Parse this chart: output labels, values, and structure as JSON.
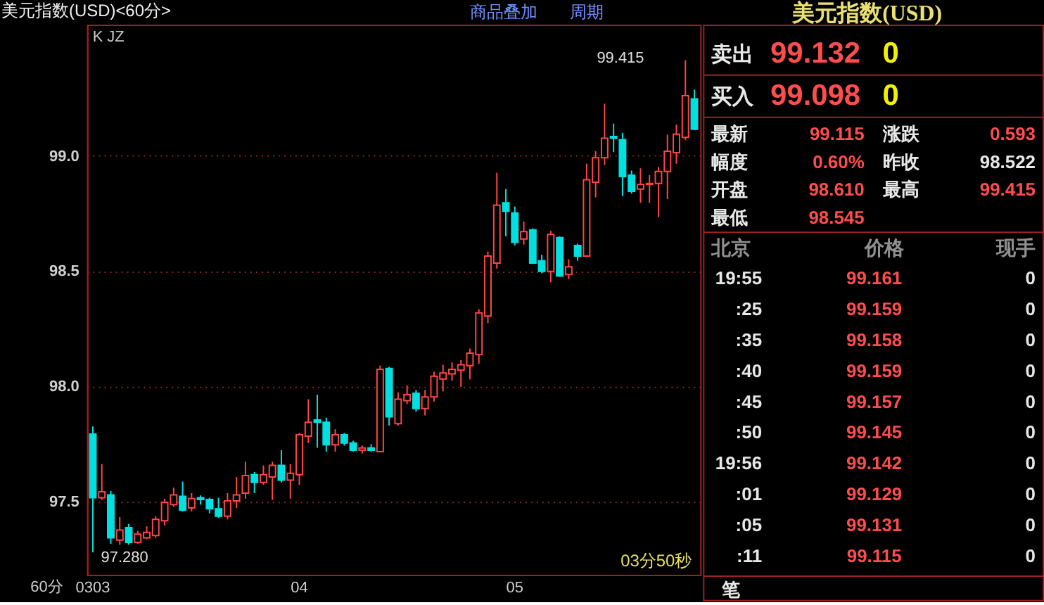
{
  "chart_data": [
    {
      "type": "candlestick",
      "title": "美元指数(USD)<60分>",
      "categories": [
        "0303",
        null,
        null,
        null,
        null,
        null,
        null,
        null,
        null,
        null,
        null,
        null,
        null,
        null,
        null,
        null,
        null,
        null,
        null,
        null,
        null,
        null,
        null,
        "04",
        null,
        null,
        null,
        null,
        null,
        null,
        null,
        null,
        null,
        null,
        null,
        null,
        null,
        null,
        null,
        null,
        null,
        null,
        null,
        null,
        null,
        null,
        null,
        "05",
        null,
        null,
        null,
        null,
        null,
        null,
        null,
        null,
        null,
        null,
        null,
        null,
        null,
        null,
        null,
        null,
        null,
        null,
        null,
        null
      ],
      "ohlc": [
        [
          97.793,
          97.826,
          97.28,
          97.517
        ],
        [
          97.517,
          97.663,
          97.507,
          97.543
        ],
        [
          97.529,
          97.547,
          97.317,
          97.343
        ],
        [
          97.333,
          97.433,
          97.313,
          97.377
        ],
        [
          97.387,
          97.403,
          97.313,
          97.323
        ],
        [
          97.323,
          97.373,
          97.317,
          97.359
        ],
        [
          97.343,
          97.393,
          97.337,
          97.367
        ],
        [
          97.353,
          97.437,
          97.343,
          97.423
        ],
        [
          97.417,
          97.513,
          97.397,
          97.497
        ],
        [
          97.487,
          97.561,
          97.477,
          97.529
        ],
        [
          97.523,
          97.587,
          97.457,
          97.463
        ],
        [
          97.473,
          97.537,
          97.457,
          97.513
        ],
        [
          97.517,
          97.527,
          97.487,
          97.509
        ],
        [
          97.509,
          97.517,
          97.449,
          97.469
        ],
        [
          97.469,
          97.517,
          97.429,
          97.437
        ],
        [
          97.437,
          97.537,
          97.423,
          97.503
        ],
        [
          97.503,
          97.607,
          97.473,
          97.529
        ],
        [
          97.537,
          97.673,
          97.513,
          97.613
        ],
        [
          97.617,
          97.629,
          97.537,
          97.583
        ],
        [
          97.583,
          97.657,
          97.573,
          97.617
        ],
        [
          97.607,
          97.673,
          97.507,
          97.657
        ],
        [
          97.657,
          97.723,
          97.583,
          97.593
        ],
        [
          97.593,
          97.663,
          97.513,
          97.623
        ],
        [
          97.617,
          97.798,
          97.573,
          97.79
        ],
        [
          97.784,
          97.944,
          97.754,
          97.844
        ],
        [
          97.854,
          97.964,
          97.734,
          97.844
        ],
        [
          97.844,
          97.864,
          97.717,
          97.747
        ],
        [
          97.747,
          97.814,
          97.717,
          97.79
        ],
        [
          97.79,
          97.798,
          97.743,
          97.754
        ],
        [
          97.754,
          97.764,
          97.717,
          97.723
        ],
        [
          97.723,
          97.743,
          97.709,
          97.733
        ],
        [
          97.733,
          97.749,
          97.717,
          97.723
        ],
        [
          97.717,
          98.09,
          97.717,
          98.074
        ],
        [
          98.078,
          98.084,
          97.83,
          97.868
        ],
        [
          97.838,
          97.974,
          97.83,
          97.944
        ],
        [
          97.938,
          98.004,
          97.924,
          97.964
        ],
        [
          97.97,
          97.984,
          97.89,
          97.904
        ],
        [
          97.904,
          97.984,
          97.874,
          97.954
        ],
        [
          97.954,
          98.064,
          97.934,
          98.044
        ],
        [
          98.032,
          98.094,
          97.978,
          98.058
        ],
        [
          98.054,
          98.104,
          98.024,
          98.074
        ],
        [
          98.07,
          98.114,
          97.998,
          98.094
        ],
        [
          98.09,
          98.164,
          98.03,
          98.144
        ],
        [
          98.138,
          98.335,
          98.098,
          98.319
        ],
        [
          98.305,
          98.585,
          98.275,
          98.565
        ],
        [
          98.535,
          98.926,
          98.511,
          98.786
        ],
        [
          98.796,
          98.856,
          98.651,
          98.76
        ],
        [
          98.752,
          98.78,
          98.611,
          98.625
        ],
        [
          98.639,
          98.715,
          98.615,
          98.671
        ],
        [
          98.679,
          98.685,
          98.531,
          98.535
        ],
        [
          98.545,
          98.571,
          98.491,
          98.499
        ],
        [
          98.499,
          98.675,
          98.451,
          98.659
        ],
        [
          98.645,
          98.651,
          98.475,
          98.479
        ],
        [
          98.485,
          98.551,
          98.465,
          98.519
        ],
        [
          98.611,
          98.619,
          98.545,
          98.565
        ],
        [
          98.565,
          98.966,
          98.565,
          98.896
        ],
        [
          98.886,
          99.02,
          98.82,
          98.992
        ],
        [
          98.992,
          99.226,
          98.96,
          99.076
        ],
        [
          99.084,
          99.14,
          99.016,
          99.076
        ],
        [
          99.07,
          99.1,
          98.826,
          98.91
        ],
        [
          98.916,
          98.936,
          98.836,
          98.846
        ],
        [
          98.856,
          98.946,
          98.796,
          98.876
        ],
        [
          98.876,
          98.916,
          98.796,
          98.88
        ],
        [
          98.88,
          98.952,
          98.735,
          98.932
        ],
        [
          98.932,
          99.092,
          98.812,
          99.02
        ],
        [
          99.014,
          99.136,
          98.966,
          99.094
        ],
        [
          99.08,
          99.415,
          99.068,
          99.261
        ],
        [
          99.247,
          99.287,
          99.112,
          99.115
        ]
      ],
      "colors": [
        "#00e0e0",
        "#ff4444",
        "#00e0e0",
        "#ff4444",
        "#00e0e0",
        "#ff4444",
        "#ff4444",
        "#ff4444",
        "#ff4444",
        "#ff4444",
        "#00e0e0",
        "#ff4444",
        "#00e0e0",
        "#00e0e0",
        "#00e0e0",
        "#ff4444",
        "#ff4444",
        "#ff4444",
        "#00e0e0",
        "#ff4444",
        "#ff4444",
        "#00e0e0",
        "#ff4444",
        "#ff4444",
        "#ff4444",
        "#00e0e0",
        "#00e0e0",
        "#ff4444",
        "#00e0e0",
        "#00e0e0",
        "#ff4444",
        "#00e0e0",
        "#ff4444",
        "#00e0e0",
        "#ff4444",
        "#ff4444",
        "#00e0e0",
        "#ff4444",
        "#ff4444",
        "#ff4444",
        "#ff4444",
        "#ff4444",
        "#ff4444",
        "#ff4444",
        "#ff4444",
        "#ff4444",
        "#00e0e0",
        "#00e0e0",
        "#ff4444",
        "#00e0e0",
        "#00e0e0",
        "#ff4444",
        "#00e0e0",
        "#ff4444",
        "#00e0e0",
        "#ff4444",
        "#ff4444",
        "#ff4444",
        "#00e0e0",
        "#00e0e0",
        "#00e0e0",
        "#ff4444",
        "#ff4444",
        "#ff4444",
        "#ff4444",
        "#ff4444",
        "#ff4444",
        "#00e0e0"
      ],
      "ylim": [
        97.183,
        99.569
      ],
      "yticks": [
        97.5,
        {
          "value": 98,
          "label": "98.0"
        },
        98.5,
        {
          "value": 99,
          "label": "99.0"
        }
      ],
      "grid": "y",
      "annotations": [
        "K JZ",
        "99.415",
        "97.280",
        "03分50秒",
        "60分",
        "商品叠加",
        "周期"
      ]
    },
    {
      "type": "other",
      "title": "美元指数(USD)",
      "annotations": [
        "卖出",
        "99.132",
        "0",
        "买入",
        "99.098",
        "0",
        "最新",
        "99.115",
        "涨跌",
        "0.593",
        "幅度",
        "0.60%",
        "昨收",
        "98.522",
        "开盘",
        "98.610",
        "最高",
        "99.415",
        "最低",
        "98.545",
        "北京",
        "价格",
        "现手",
        "19:55",
        "99.161",
        "0",
        ":25",
        "99.159",
        "0",
        ":35",
        "99.158",
        "0",
        ":40",
        "99.159",
        "0",
        ":45",
        "99.157",
        "0",
        ":50",
        "99.145",
        "0",
        "19:56",
        "99.142",
        "0",
        ":01",
        "99.129",
        "0",
        ":05",
        "99.131",
        "0",
        ":11",
        "99.115",
        "0",
        "笔"
      ]
    }
  ]
}
